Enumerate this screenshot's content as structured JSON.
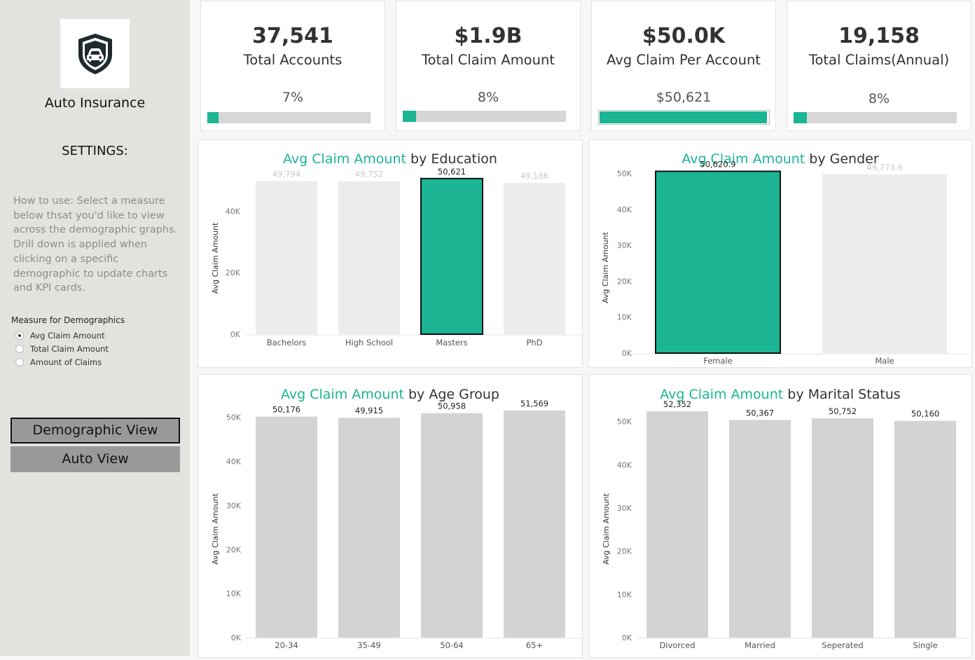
{
  "sidebar": {
    "app_title": "Auto Insurance",
    "settings_title": "SETTINGS:",
    "howto": "How to use: Select a measure below thsat you'd like to view across the demographic graphs. Drill down is applied when clicking on a specific demographic to update charts and KPI cards.",
    "measure_title": "Measure for Demographics",
    "measures": [
      {
        "label": "Avg Claim Amount",
        "selected": true
      },
      {
        "label": "Total Claim Amount",
        "selected": false
      },
      {
        "label": "Amount of Claims",
        "selected": false
      }
    ],
    "views": [
      {
        "label": "Demographic View",
        "active": true
      },
      {
        "label": "Auto View",
        "active": false
      }
    ]
  },
  "kpis": [
    {
      "value": "37,541",
      "label": "Total Accounts",
      "sub": "7%",
      "progress": 0.07
    },
    {
      "value": "$1.9B",
      "label": "Total Claim Amount",
      "sub": "8%",
      "progress": 0.08
    },
    {
      "value": "$50.0K",
      "label": "Avg Claim Per Account",
      "sub": "$50,621",
      "progress": 0.99
    },
    {
      "value": "19,158",
      "label": "Total Claims(Annual)",
      "sub": "8%",
      "progress": 0.08
    }
  ],
  "colors": {
    "accent": "#1bb594",
    "bar": "#d3d3d3",
    "bar_faded": "#ececec",
    "highlight_border": "#111111"
  },
  "chart_data": [
    {
      "type": "bar",
      "title_measure": "Avg Claim Amount",
      "title_rest": " by Education",
      "ylabel": "Avg Claim Amount",
      "ylim": [
        0,
        54000
      ],
      "yticks": [
        0,
        20000,
        40000
      ],
      "ytick_labels": [
        "0K",
        "20K",
        "40K"
      ],
      "categories": [
        "Bachelors",
        "High School",
        "Masters",
        "PhD"
      ],
      "values": [
        49794,
        49752,
        50621,
        49186
      ],
      "value_labels": [
        "49,794",
        "49,752",
        "50,621",
        "49,186"
      ],
      "highlight": 2,
      "fade_others": true
    },
    {
      "type": "bar",
      "title_measure": "Avg Claim Amount",
      "title_rest": " by Gender",
      "ylabel": "Avg Claim Amount",
      "ylim": [
        0,
        51500
      ],
      "yticks": [
        0,
        10000,
        20000,
        30000,
        40000,
        50000
      ],
      "ytick_labels": [
        "0K",
        "10K",
        "20K",
        "30K",
        "40K",
        "50K"
      ],
      "categories": [
        "Female",
        "Male"
      ],
      "values": [
        50620.9,
        49773.9
      ],
      "value_labels": [
        "50,620.9",
        "49,773.9"
      ],
      "highlight": 0,
      "fade_others": true
    },
    {
      "type": "bar",
      "title_measure": "Avg Claim Amount",
      "title_rest": " by Age Group",
      "ylabel": "Avg Claim Amount",
      "ylim": [
        0,
        52500
      ],
      "yticks": [
        0,
        10000,
        20000,
        30000,
        40000,
        50000
      ],
      "ytick_labels": [
        "0K",
        "10K",
        "20K",
        "30K",
        "40K",
        "50K"
      ],
      "categories": [
        "20-34",
        "35-49",
        "50-64",
        "65+"
      ],
      "values": [
        50176,
        49915,
        50958,
        51569
      ],
      "value_labels": [
        "50,176",
        "49,915",
        "50,958",
        "51,569"
      ],
      "highlight": -1,
      "fade_others": false
    },
    {
      "type": "bar",
      "title_measure": "Avg Claim Amount",
      "title_rest": " by Marital Status",
      "ylabel": "Avg Claim Amount",
      "ylim": [
        0,
        53500
      ],
      "yticks": [
        0,
        10000,
        20000,
        30000,
        40000,
        50000
      ],
      "ytick_labels": [
        "0K",
        "10K",
        "20K",
        "30K",
        "40K",
        "50K"
      ],
      "categories": [
        "Divorced",
        "Married",
        "Seperated",
        "Single"
      ],
      "values": [
        52352,
        50367,
        50752,
        50160
      ],
      "value_labels": [
        "52,352",
        "50,367",
        "50,752",
        "50,160"
      ],
      "highlight": -1,
      "fade_others": false
    }
  ]
}
